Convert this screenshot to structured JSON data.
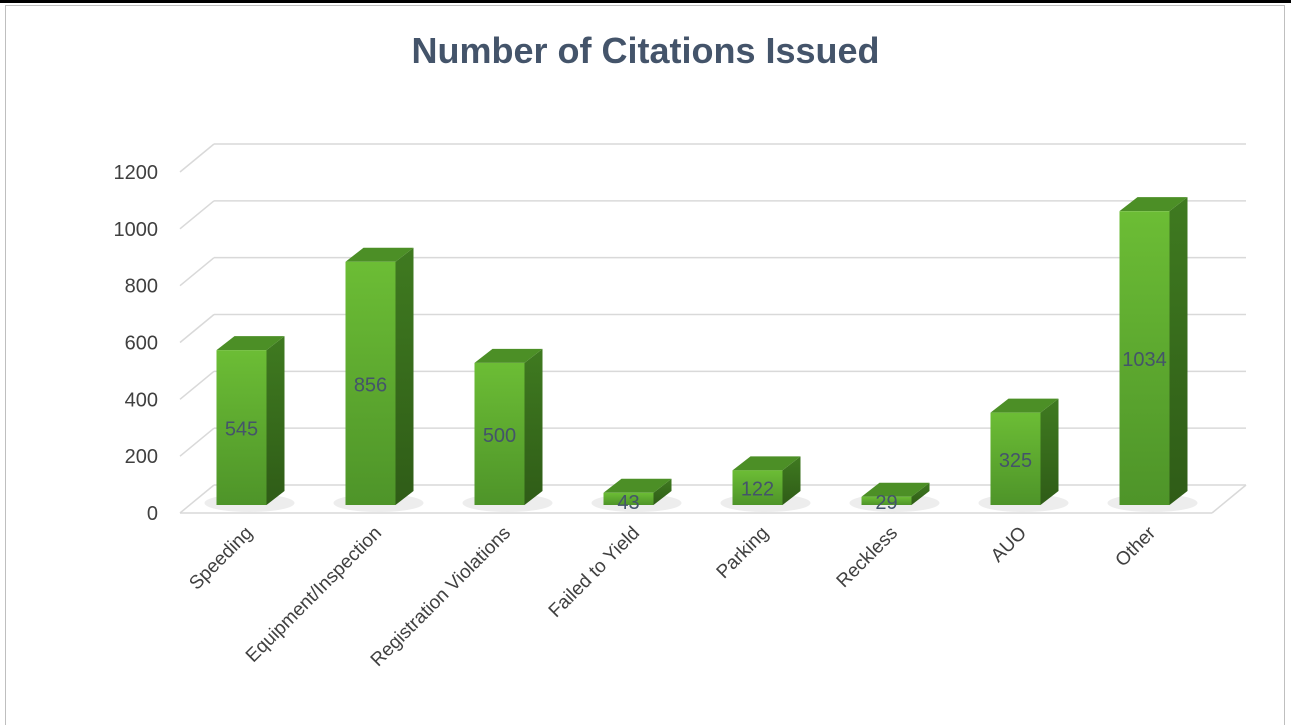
{
  "chart_data": {
    "type": "bar",
    "title": "Number of Citations Issued",
    "categories": [
      "Speeding",
      "Equipment/Inspection",
      "Registration Violations",
      "Failed to Yield",
      "Parking",
      "Reckless",
      "AUO",
      "Other"
    ],
    "values": [
      545,
      856,
      500,
      43,
      122,
      29,
      325,
      1034
    ],
    "ylim": [
      0,
      1200
    ],
    "yticks": [
      "0",
      "200",
      "400",
      "600",
      "800",
      "1000",
      "1200"
    ],
    "data_labels": [
      "545",
      "856",
      "500",
      "43",
      "122",
      "29",
      "325",
      "1034"
    ],
    "bar_color": "#5aa82e",
    "bar_side_color": "#3a6e1d",
    "bar_top_color": "#4c8f26",
    "grid": true,
    "legend": "none"
  }
}
